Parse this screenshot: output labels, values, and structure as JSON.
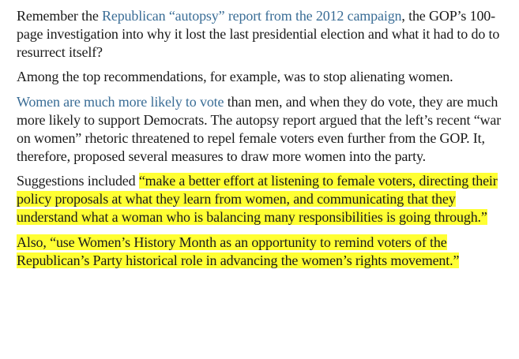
{
  "article": {
    "p1": {
      "before": "Remember the ",
      "link": "Republican “autopsy” report from the 2012 campaign",
      "after": ", the GOP’s 100-page investigation into why it lost the last presidential election and what it had to do to resurrect itself?"
    },
    "p2": {
      "text": "Among the top recommendations, for example, was to stop alienating women."
    },
    "p3": {
      "link": "Women are much more likely to vote",
      "after": " than men, and when they do vote, they are much more likely to support Democrats. The autopsy report argued that the left’s recent “war on women” rhetoric threatened to repel female voters even further from the GOP. It, therefore, proposed several measures to draw more women into the party."
    },
    "p4": {
      "before": "Suggestions included ",
      "highlight": "“make a better effort at listening to female voters, directing their policy proposals at what they learn from women, and communicating that they understand what a woman who is balancing many responsibilities is going through.”"
    },
    "p5": {
      "highlight": "Also, “use Women’s History Month as an opportunity to remind voters of the Republican’s Party historical role in advancing the women’s rights movement.”"
    }
  },
  "colors": {
    "link": "#3a6d96",
    "highlight": "#ffff33",
    "text": "#1a1a1a"
  }
}
